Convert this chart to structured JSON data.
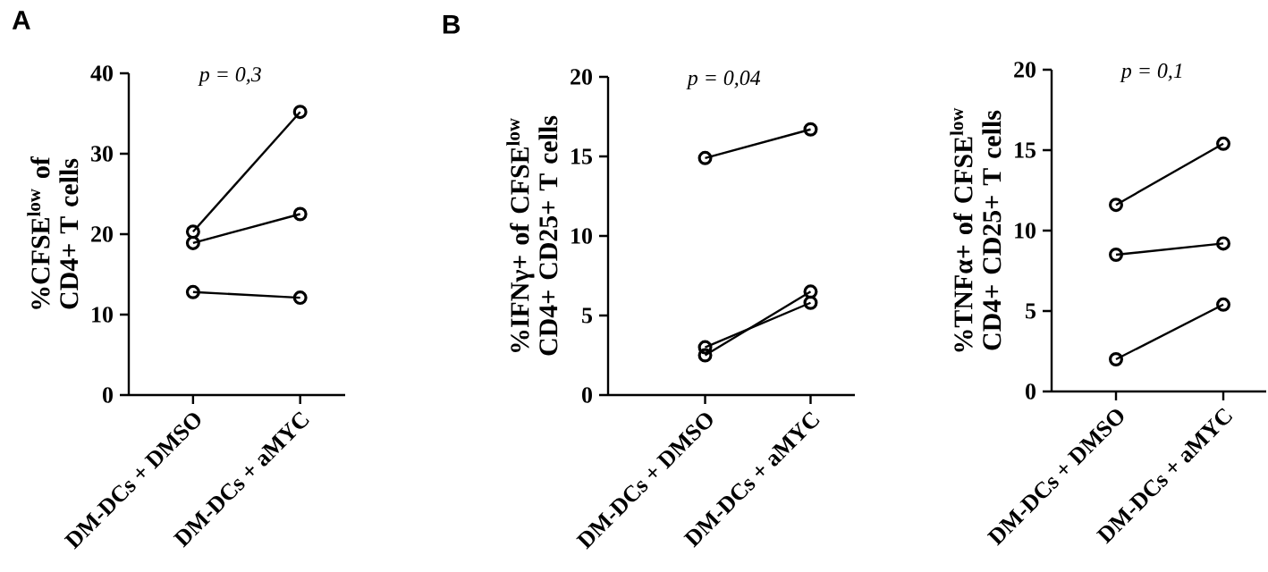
{
  "chart_data": [
    {
      "type": "line",
      "title": "A",
      "ylabel": "%CFSE$^{low}$ of CD4+ T cells",
      "categories": [
        "DM-DCs + DMSO",
        "DM-DCs + aMYC"
      ],
      "ylim": [
        0,
        40
      ],
      "yticks": [
        0,
        10,
        20,
        30,
        40
      ],
      "marker": "circle",
      "annotations": [
        "p = 0,3"
      ],
      "series": [
        {
          "color": "#000000",
          "values": [
            20.3,
            35.2
          ]
        },
        {
          "color": "#000000",
          "values": [
            18.9,
            22.5
          ]
        },
        {
          "color": "#000000",
          "values": [
            12.8,
            12.1
          ]
        }
      ]
    },
    {
      "type": "line",
      "title": "B",
      "ylabel": "%IFNγ+ of CFSE$^{low}$ CD4+ CD25+ T cells",
      "categories": [
        "DM-DCs + DMSO",
        "DM-DCs + aMYC"
      ],
      "ylim": [
        0,
        20
      ],
      "yticks": [
        0,
        5,
        10,
        15,
        20
      ],
      "marker": "circle",
      "annotations": [
        "p = 0,04"
      ],
      "series": [
        {
          "color": "#000000",
          "values": [
            14.9,
            16.7
          ]
        },
        {
          "color": "#000000",
          "values": [
            3.0,
            5.8
          ]
        },
        {
          "color": "#000000",
          "values": [
            2.5,
            6.5
          ]
        }
      ]
    },
    {
      "type": "line",
      "ylabel": "%TNFα+ of CFSE$^{low}$ CD4+ CD25+ T cells",
      "categories": [
        "DM-DCs + DMSO",
        "DM-DCs + aMYC"
      ],
      "ylim": [
        0,
        20
      ],
      "yticks": [
        0,
        5,
        10,
        15,
        20
      ],
      "marker": "circle",
      "annotations": [
        "p = 0,1"
      ],
      "series": [
        {
          "color": "#000000",
          "values": [
            11.6,
            15.4
          ]
        },
        {
          "color": "#000000",
          "values": [
            8.5,
            9.2
          ]
        },
        {
          "color": "#000000",
          "values": [
            2.0,
            5.4
          ]
        }
      ]
    }
  ]
}
